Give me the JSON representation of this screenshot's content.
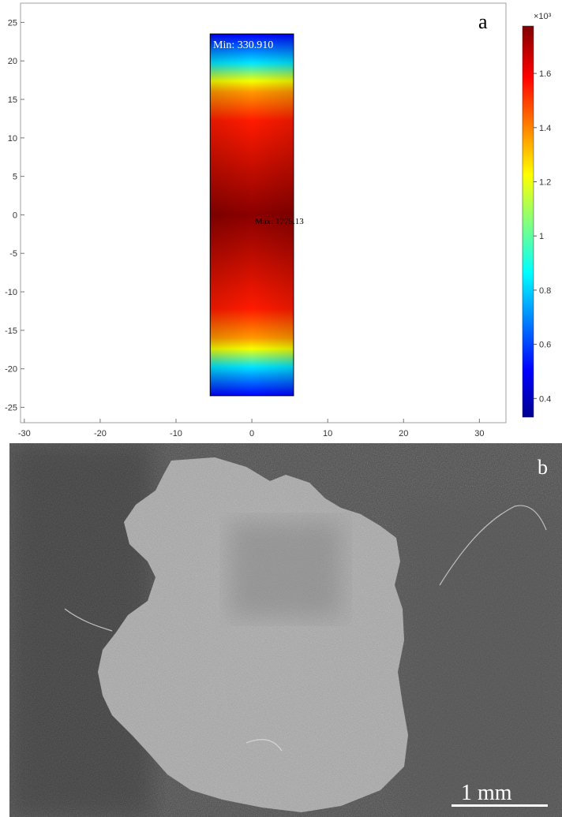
{
  "panel_a": {
    "letter": "a",
    "min_label": "Min: 330.910",
    "max_label": "Max: 1775.13",
    "x_ticks": [
      -30,
      -20,
      -10,
      0,
      10,
      20,
      30
    ],
    "y_ticks": [
      25,
      20,
      15,
      10,
      5,
      0,
      -5,
      -10,
      -15,
      -20,
      -25
    ],
    "xlim": [
      -30.5,
      33.5
    ],
    "ylim": [
      -27,
      27.5
    ],
    "rect": {
      "x": [
        -5.5,
        5.5
      ],
      "y": [
        -23.5,
        23.5
      ]
    },
    "colorbar": {
      "exponent": "×10³",
      "ticks": [
        0.4,
        0.6,
        0.8,
        1,
        1.2,
        1.4,
        1.6
      ],
      "range": [
        0.331,
        1.775
      ],
      "colormap": [
        "#00008f",
        "#0000ff",
        "#00ffff",
        "#ffff00",
        "#ff0000",
        "#800000"
      ]
    },
    "colors": {
      "max": "#8b0000",
      "red": "#ff1a00",
      "orange": "#ff9900",
      "yellow": "#f5ff00",
      "cyan": "#00e5ff",
      "blue": "#0000ff"
    }
  },
  "panel_b": {
    "letter": "b",
    "scale_label": "1 mm"
  },
  "chart_data": {
    "type": "heatmap",
    "title": "",
    "xlabel": "",
    "ylabel": "",
    "x_ticks": [
      -30,
      -20,
      -10,
      0,
      10,
      20,
      30
    ],
    "y_ticks": [
      -25,
      -20,
      -15,
      -10,
      -5,
      0,
      5,
      10,
      15,
      20,
      25
    ],
    "xlim": [
      -30.5,
      33.5
    ],
    "ylim": [
      -27,
      27.5
    ],
    "region": {
      "x": [
        -5.5,
        5.5
      ],
      "y": [
        -23.5,
        23.5
      ]
    },
    "min": 330.91,
    "max": 1775.13,
    "colorbar_ticks": [
      0.4,
      0.6,
      0.8,
      1,
      1.2,
      1.4,
      1.6
    ],
    "colorbar_exponent": "×10³",
    "grid": false
  }
}
